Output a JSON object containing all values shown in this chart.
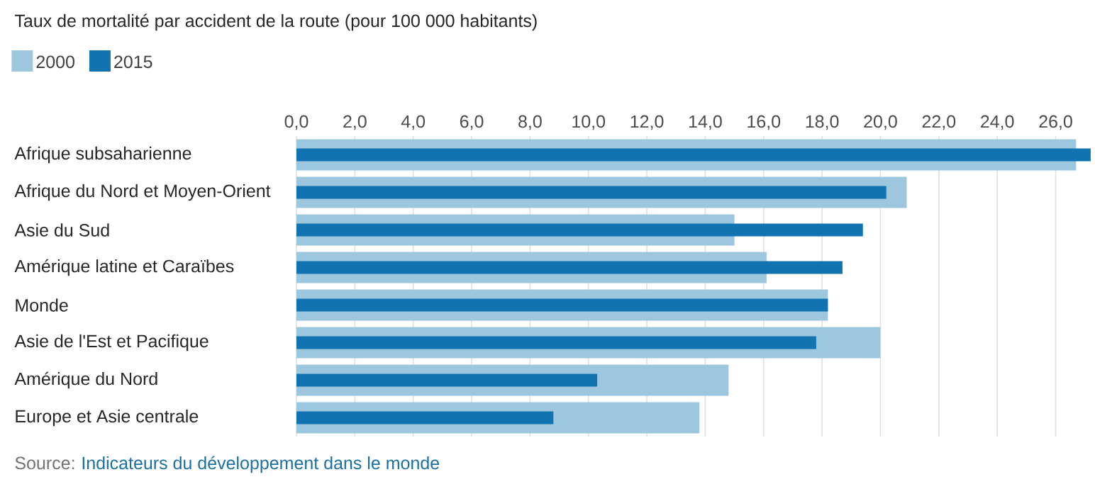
{
  "chart_data": {
    "type": "bar",
    "orientation": "horizontal",
    "title": "Taux de mortalité par accident de la route (pour 100 000 habitants)",
    "categories": [
      "Afrique subsaharienne",
      "Afrique du Nord et Moyen-Orient",
      "Asie du Sud",
      "Amérique latine et Caraïbes",
      "Monde",
      "Asie de l'Est et Pacifique",
      "Amérique du Nord",
      "Europe et Asie centrale"
    ],
    "series": [
      {
        "name": "2000",
        "color": "#9dc7de",
        "values": [
          26.7,
          20.9,
          15.0,
          16.1,
          18.2,
          20.0,
          14.8,
          13.8
        ]
      },
      {
        "name": "2015",
        "color": "#1173b0",
        "values": [
          27.2,
          20.2,
          19.4,
          18.7,
          18.2,
          17.8,
          10.3,
          8.8
        ]
      }
    ],
    "xlim": [
      0,
      27.3
    ],
    "xticks": [
      {
        "value": 0,
        "label": "0,0"
      },
      {
        "value": 2,
        "label": "2,0"
      },
      {
        "value": 4,
        "label": "4,0"
      },
      {
        "value": 6,
        "label": "6,0"
      },
      {
        "value": 8,
        "label": "8,0"
      },
      {
        "value": 10,
        "label": "10,0"
      },
      {
        "value": 12,
        "label": "12,0"
      },
      {
        "value": 14,
        "label": "14,0"
      },
      {
        "value": 16,
        "label": "16,0"
      },
      {
        "value": 18,
        "label": "18,0"
      },
      {
        "value": 20,
        "label": "20,0"
      },
      {
        "value": 22,
        "label": "22,0"
      },
      {
        "value": 24,
        "label": "24,0"
      },
      {
        "value": 26,
        "label": "26,0"
      }
    ],
    "grid": "x",
    "legend": "top left",
    "annotations": [
      "Source:",
      "Indicateurs du développement dans le monde"
    ]
  }
}
